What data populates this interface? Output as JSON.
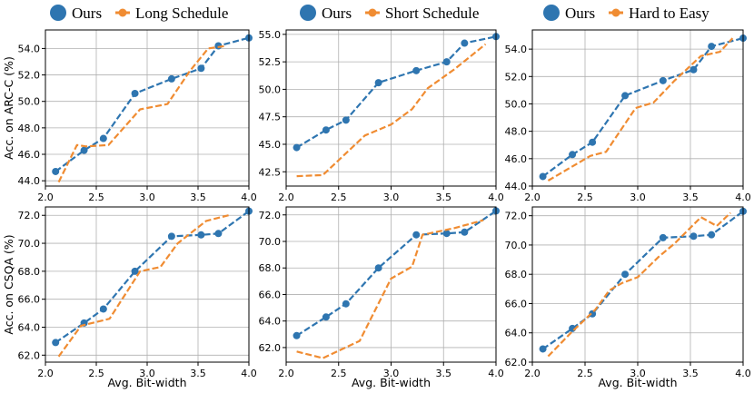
{
  "chart_data": [
    {
      "type": "line",
      "row": 0,
      "col": 0,
      "ylabel": "Acc. on ARC-C (%)",
      "xlabel": "",
      "xlim": [
        2.0,
        4.0
      ],
      "ylim": [
        43.6,
        55.4
      ],
      "xticks": [
        "2.0",
        "2.5",
        "3.0",
        "3.5",
        "4.0"
      ],
      "yticks": [
        "44.0",
        "46.0",
        "48.0",
        "50.0",
        "52.0",
        "54.0"
      ],
      "grid": true,
      "series": [
        {
          "name": "Ours",
          "color": "#2e75b0",
          "marker": "circle",
          "x": [
            2.1,
            2.38,
            2.57,
            2.88,
            3.24,
            3.53,
            3.7,
            4.0
          ],
          "y": [
            44.7,
            46.3,
            47.2,
            50.6,
            51.7,
            52.5,
            54.2,
            54.8
          ]
        },
        {
          "name": "Long Schedule",
          "color": "#f08c32",
          "marker": "none",
          "x": [
            2.13,
            2.31,
            2.4,
            2.62,
            2.93,
            3.2,
            3.42,
            3.6,
            3.78
          ],
          "y": [
            43.9,
            46.7,
            46.6,
            46.7,
            49.4,
            49.8,
            52.3,
            54.0,
            54.2
          ]
        }
      ]
    },
    {
      "type": "line",
      "row": 0,
      "col": 1,
      "ylabel": "",
      "xlabel": "",
      "xlim": [
        2.0,
        4.0
      ],
      "ylim": [
        41.2,
        55.4
      ],
      "xticks": [
        "2.0",
        "2.5",
        "3.0",
        "3.5",
        "4.0"
      ],
      "yticks": [
        "42.5",
        "45.0",
        "47.5",
        "50.0",
        "52.5",
        "55.0"
      ],
      "grid": true,
      "series": [
        {
          "name": "Ours",
          "color": "#2e75b0",
          "marker": "circle",
          "x": [
            2.1,
            2.38,
            2.57,
            2.88,
            3.24,
            3.53,
            3.7,
            4.0
          ],
          "y": [
            44.7,
            46.3,
            47.2,
            50.6,
            51.7,
            52.5,
            54.2,
            54.8
          ]
        },
        {
          "name": "Short Schedule",
          "color": "#f08c32",
          "marker": "none",
          "x": [
            2.1,
            2.35,
            2.55,
            2.75,
            3.0,
            3.2,
            3.35,
            3.6,
            3.9
          ],
          "y": [
            42.1,
            42.2,
            44.0,
            45.8,
            46.8,
            48.2,
            50.1,
            51.8,
            54.1
          ]
        }
      ]
    },
    {
      "type": "line",
      "row": 0,
      "col": 2,
      "ylabel": "",
      "xlabel": "",
      "xlim": [
        2.0,
        4.0
      ],
      "ylim": [
        44.0,
        55.4
      ],
      "xticks": [
        "2.0",
        "2.5",
        "3.0",
        "3.5",
        "4.0"
      ],
      "yticks": [
        "44.0",
        "46.0",
        "48.0",
        "50.0",
        "52.0",
        "54.0"
      ],
      "grid": true,
      "series": [
        {
          "name": "Ours",
          "color": "#2e75b0",
          "marker": "circle",
          "x": [
            2.1,
            2.38,
            2.57,
            2.88,
            3.24,
            3.53,
            3.7,
            4.0
          ],
          "y": [
            44.7,
            46.3,
            47.2,
            50.6,
            51.7,
            52.5,
            54.2,
            54.8
          ]
        },
        {
          "name": "Hard to Easy",
          "color": "#f08c32",
          "marker": "none",
          "x": [
            2.15,
            2.55,
            2.7,
            2.98,
            3.15,
            3.35,
            3.6,
            3.78,
            3.9
          ],
          "y": [
            44.4,
            46.2,
            46.5,
            49.7,
            50.1,
            51.7,
            53.5,
            53.8,
            54.8
          ]
        }
      ]
    },
    {
      "type": "line",
      "row": 1,
      "col": 0,
      "ylabel": "Acc. on CSQA (%)",
      "xlabel": "Avg. Bit-width",
      "xlim": [
        2.0,
        4.0
      ],
      "ylim": [
        61.5,
        72.6
      ],
      "xticks": [
        "2.0",
        "2.5",
        "3.0",
        "3.5",
        "4.0"
      ],
      "yticks": [
        "62.0",
        "64.0",
        "66.0",
        "68.0",
        "70.0",
        "72.0"
      ],
      "grid": true,
      "series": [
        {
          "name": "Ours",
          "color": "#2e75b0",
          "marker": "circle",
          "x": [
            2.1,
            2.38,
            2.57,
            2.88,
            3.24,
            3.53,
            3.7,
            4.0
          ],
          "y": [
            62.9,
            64.3,
            65.3,
            68.0,
            70.5,
            70.6,
            70.7,
            72.3
          ]
        },
        {
          "name": "Long Schedule",
          "color": "#f08c32",
          "marker": "none",
          "x": [
            2.13,
            2.35,
            2.63,
            2.93,
            3.13,
            3.3,
            3.58,
            3.8
          ],
          "y": [
            61.9,
            64.1,
            64.6,
            68.0,
            68.3,
            70.0,
            71.6,
            72.0
          ]
        }
      ]
    },
    {
      "type": "line",
      "row": 1,
      "col": 1,
      "ylabel": "",
      "xlabel": "Avg. Bit-width",
      "xlim": [
        2.0,
        4.0
      ],
      "ylim": [
        60.9,
        72.6
      ],
      "xticks": [
        "2.0",
        "2.5",
        "3.0",
        "3.5",
        "4.0"
      ],
      "yticks": [
        "62.0",
        "64.0",
        "66.0",
        "68.0",
        "70.0",
        "72.0"
      ],
      "grid": true,
      "series": [
        {
          "name": "Ours",
          "color": "#2e75b0",
          "marker": "circle",
          "x": [
            2.1,
            2.38,
            2.57,
            2.88,
            3.24,
            3.53,
            3.7,
            4.0
          ],
          "y": [
            62.9,
            64.3,
            65.3,
            68.0,
            70.5,
            70.6,
            70.7,
            72.3
          ]
        },
        {
          "name": "Short Schedule",
          "color": "#f08c32",
          "marker": "none",
          "x": [
            2.1,
            2.35,
            2.7,
            3.0,
            3.2,
            3.3,
            3.6,
            3.88
          ],
          "y": [
            61.7,
            61.2,
            62.5,
            67.2,
            68.1,
            70.5,
            71.0,
            71.6
          ]
        }
      ]
    },
    {
      "type": "line",
      "row": 1,
      "col": 2,
      "ylabel": "",
      "xlabel": "Avg. Bit-width",
      "xlim": [
        2.0,
        4.0
      ],
      "ylim": [
        62.0,
        72.6
      ],
      "xticks": [
        "2.0",
        "2.5",
        "3.0",
        "3.5",
        "4.0"
      ],
      "yticks": [
        "62.0",
        "64.0",
        "66.0",
        "68.0",
        "70.0",
        "72.0"
      ],
      "grid": true,
      "series": [
        {
          "name": "Ours",
          "color": "#2e75b0",
          "marker": "circle",
          "x": [
            2.1,
            2.38,
            2.57,
            2.88,
            3.24,
            3.53,
            3.7,
            4.0
          ],
          "y": [
            62.9,
            64.3,
            65.3,
            68.0,
            70.5,
            70.6,
            70.7,
            72.3
          ]
        },
        {
          "name": "Hard to Easy",
          "color": "#f08c32",
          "marker": "none",
          "x": [
            2.15,
            2.38,
            2.6,
            2.73,
            2.85,
            3.0,
            3.2,
            3.35,
            3.6,
            3.75,
            3.88
          ],
          "y": [
            62.4,
            64.1,
            65.6,
            66.9,
            67.4,
            67.8,
            69.2,
            70.1,
            71.9,
            71.3,
            72.2
          ]
        }
      ]
    }
  ],
  "legends": [
    {
      "col": 0,
      "items": [
        "Ours",
        "Long Schedule"
      ]
    },
    {
      "col": 1,
      "items": [
        "Ours",
        "Short Schedule"
      ]
    },
    {
      "col": 2,
      "items": [
        "Ours",
        "Hard to Easy"
      ]
    }
  ],
  "colors": {
    "ours": "#2e75b0",
    "variant": "#f08c32",
    "grid": "#b0b0b0"
  }
}
